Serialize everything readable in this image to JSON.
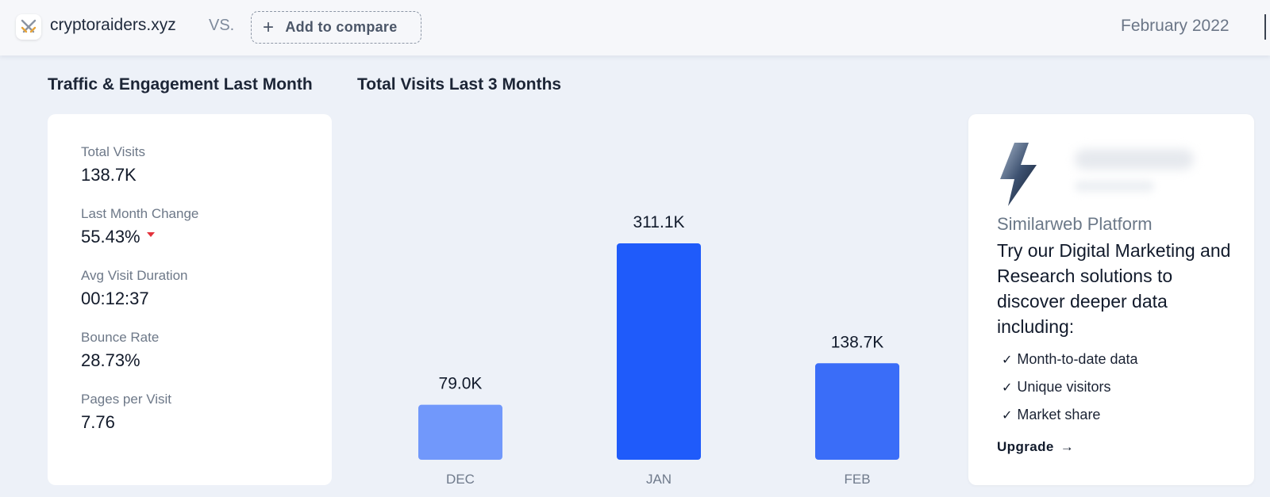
{
  "topbar": {
    "site_name": "cryptoraiders.xyz",
    "vs_label": "VS.",
    "add_compare_label": "Add to compare",
    "date": "February 2022"
  },
  "traffic": {
    "title": "Traffic & Engagement Last Month",
    "metrics": [
      {
        "label": "Total Visits",
        "value": "138.7K"
      },
      {
        "label": "Last Month Change",
        "value": "55.43%",
        "trend": "down",
        "trend_color": "#e3323b"
      },
      {
        "label": "Avg Visit Duration",
        "value": "00:12:37"
      },
      {
        "label": "Bounce Rate",
        "value": "28.73%"
      },
      {
        "label": "Pages per Visit",
        "value": "7.76"
      }
    ]
  },
  "visits_chart": {
    "title": "Total Visits Last 3 Months"
  },
  "chart_data": {
    "type": "bar",
    "title": "Total Visits Last 3 Months",
    "categories": [
      "DEC",
      "JAN",
      "FEB"
    ],
    "values": [
      79000,
      311100,
      138700
    ],
    "data_labels": [
      "79.0K",
      "311.1K",
      "138.7K"
    ],
    "colors": [
      "#7198fb",
      "#1f5bfa",
      "#3a6df8"
    ],
    "ylim": [
      0,
      311100
    ],
    "grid": false,
    "legend": "none",
    "xlabel": "",
    "ylabel": ""
  },
  "promo": {
    "eyebrow": "Similarweb Platform",
    "headline": "Try our Digital Marketing and Research solutions to discover deeper data including:",
    "features": [
      "Month-to-date data",
      "Unique visitors",
      "Market share"
    ],
    "cta": "Upgrade",
    "icon": "lightning-bolt-icon"
  },
  "colors": {
    "accent": "#1f5bfa",
    "background": "#edf1f8",
    "card": "#ffffff",
    "trend_down": "#e3323b"
  }
}
